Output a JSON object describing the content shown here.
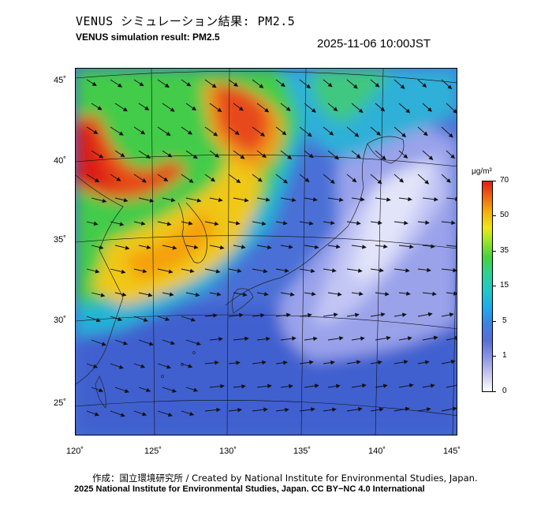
{
  "title_jp": "VENUS シミュレーション結果: PM2.5",
  "title_en": "VENUS simulation result: PM2.5",
  "timestamp": "2025-11-06 10:00JST",
  "lat_labels": [
    "45˚",
    "40˚",
    "35˚",
    "30˚",
    "25˚"
  ],
  "lon_labels": [
    "120˚",
    "125˚",
    "130˚",
    "135˚",
    "140˚",
    "145˚"
  ],
  "colorbar": {
    "unit": "μg/m³",
    "ticks": [
      "70",
      "50",
      "35",
      "15",
      "5",
      "1",
      "0"
    ],
    "colors": [
      "#dc1e14",
      "#f5aa0a",
      "#f0e614",
      "#46d23c",
      "#20c8c8",
      "#3c82e1",
      "#8c96e6",
      "#ffffff"
    ]
  },
  "credits": {
    "line1": "作成：国立環境研究所 / Created by National Institute for Environmental Studies, Japan.",
    "line2": "2025 National Institute for Environmental Studies, Japan. CC BY−NC 4.0 International"
  }
}
